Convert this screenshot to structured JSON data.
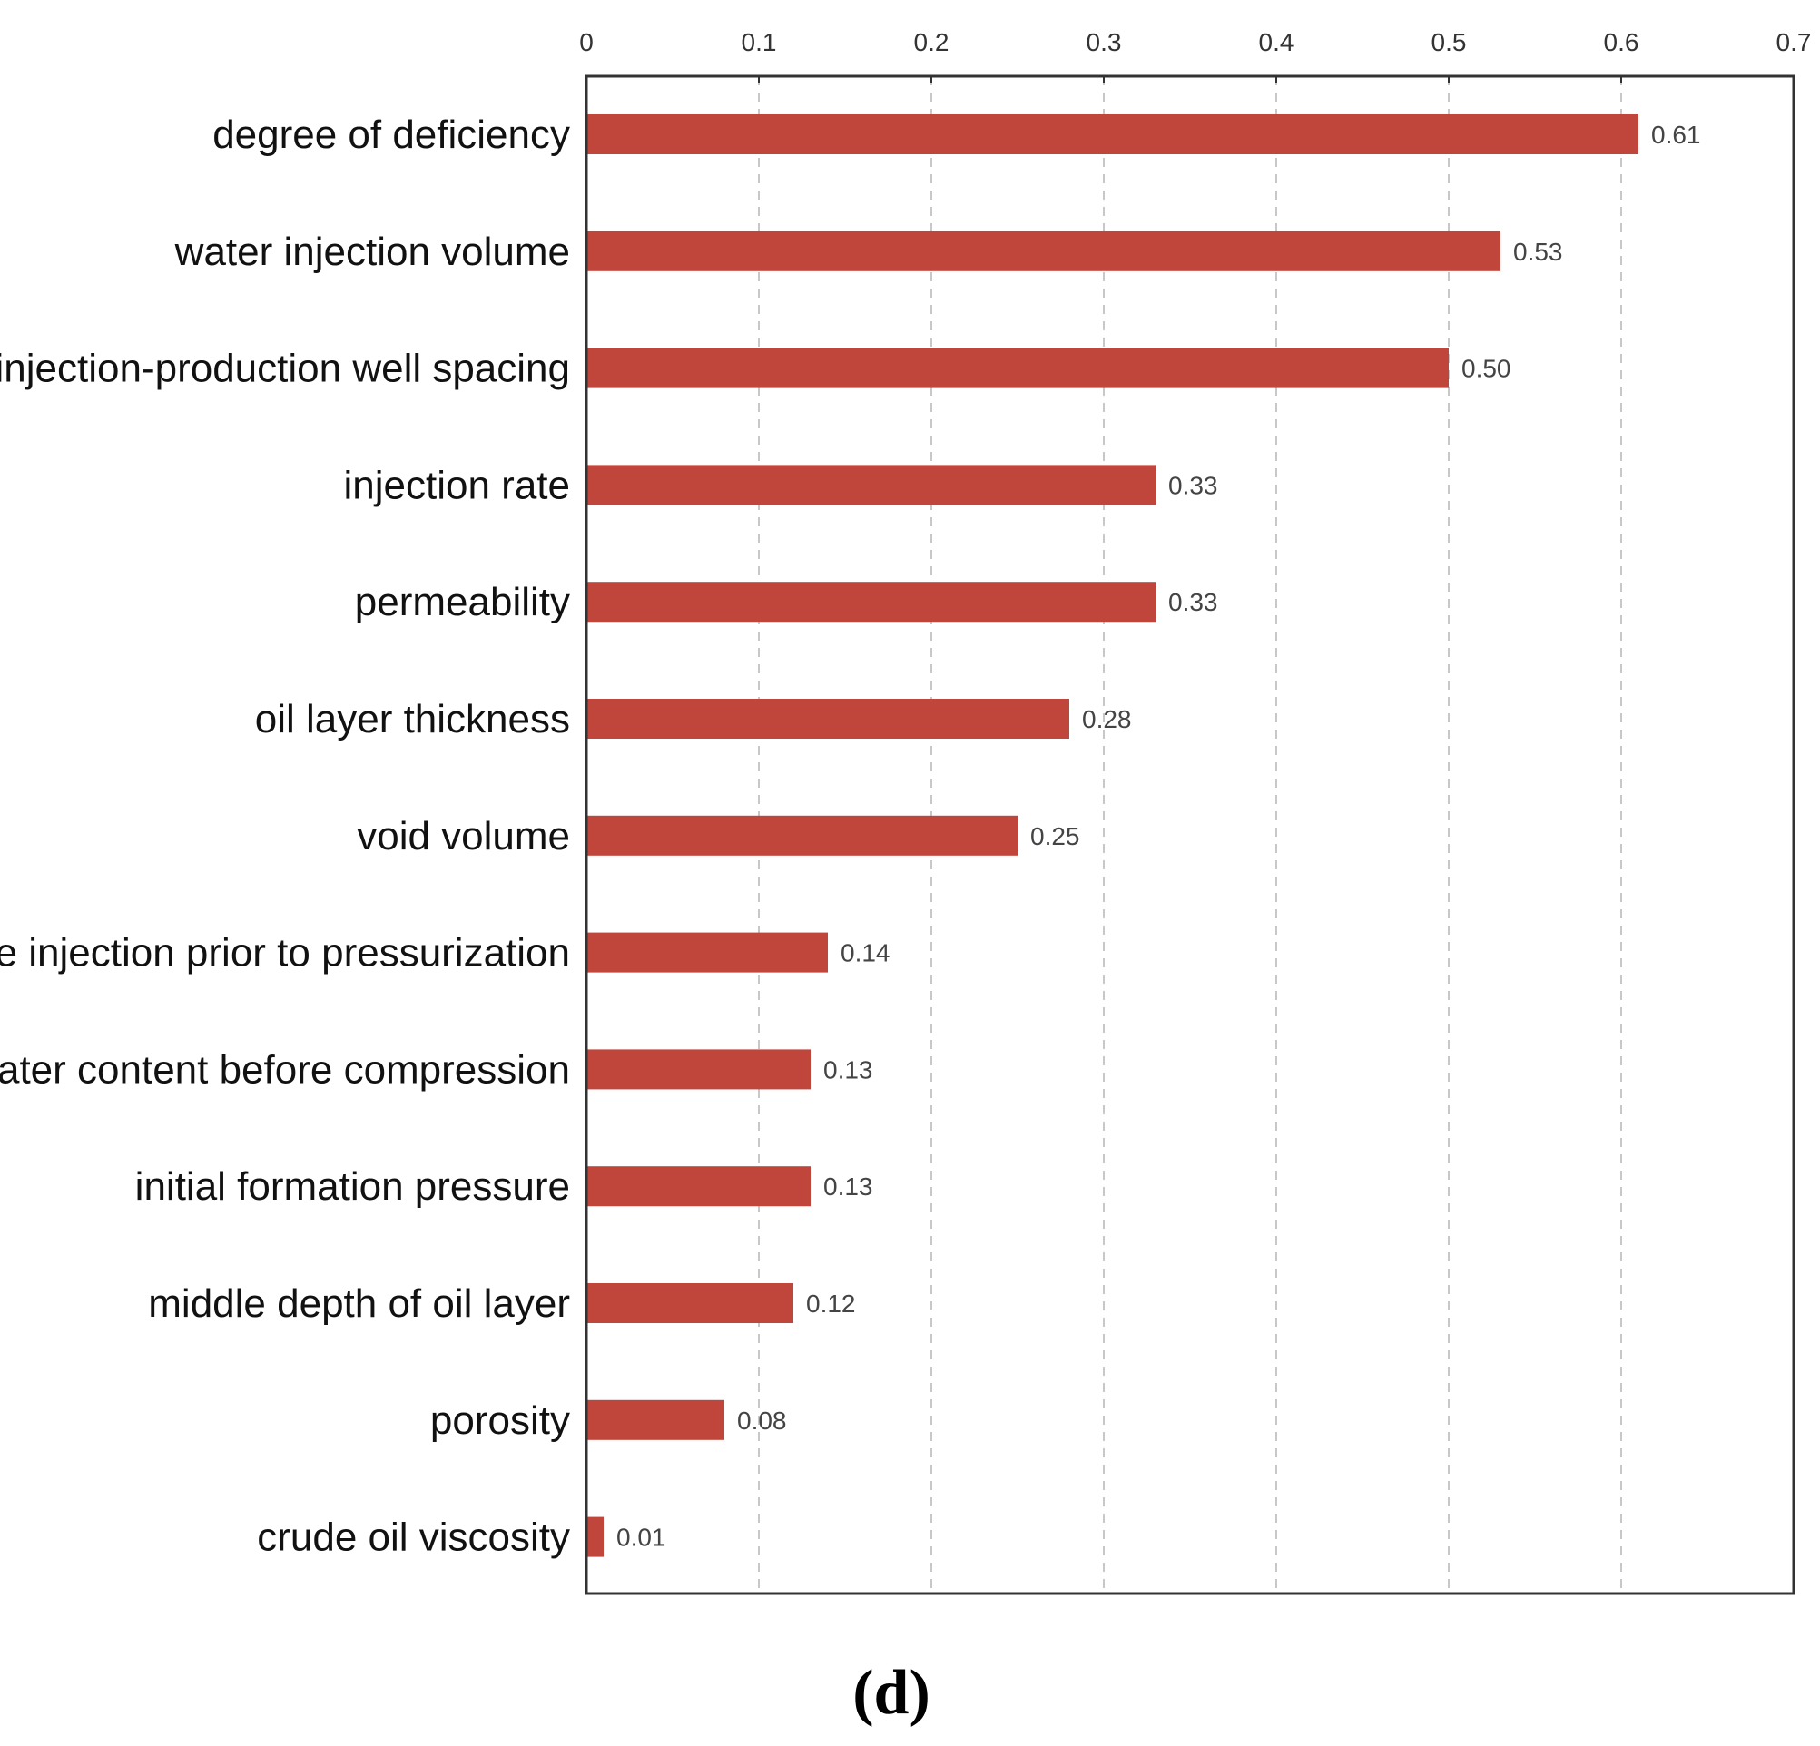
{
  "chart_data": {
    "type": "bar",
    "orientation": "horizontal",
    "categories": [
      "degree of deficiency",
      "water injection volume",
      "injection-production well spacing",
      "injection rate",
      "permeability",
      "oil layer thickness",
      "void volume",
      "cumulative injection prior to pressurization",
      "water content before compression",
      "initial formation pressure",
      "middle depth of oil layer",
      "porosity",
      "crude oil viscosity"
    ],
    "values": [
      0.61,
      0.53,
      0.5,
      0.33,
      0.33,
      0.28,
      0.25,
      0.14,
      0.13,
      0.13,
      0.12,
      0.08,
      0.01
    ],
    "value_labels": [
      "0.61",
      "0.53",
      "0.50",
      "0.33",
      "0.33",
      "0.28",
      "0.25",
      "0.14",
      "0.13",
      "0.13",
      "0.12",
      "0.08",
      "0.01"
    ],
    "xlim": [
      0,
      0.7
    ],
    "xticks": [
      "0",
      "0.1",
      "0.2",
      "0.3",
      "0.4",
      "0.5",
      "0.6",
      "0.7"
    ],
    "axis_position": "top",
    "grid": true,
    "bar_color": "#c0463b",
    "title": "",
    "xlabel": "",
    "ylabel": ""
  },
  "panel_label": "(d)"
}
